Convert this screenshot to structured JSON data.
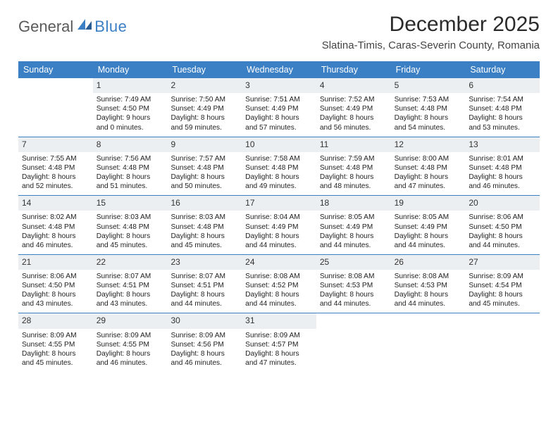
{
  "logo": {
    "text1": "General",
    "text2": "Blue"
  },
  "title": "December 2025",
  "location": "Slatina-Timis, Caras-Severin County, Romania",
  "colors": {
    "accent": "#3b7fc4",
    "header_bg": "#eceff1",
    "text": "#222222",
    "page_bg": "#ffffff"
  },
  "dow": [
    "Sunday",
    "Monday",
    "Tuesday",
    "Wednesday",
    "Thursday",
    "Friday",
    "Saturday"
  ],
  "weeks": [
    [
      {
        "n": "",
        "sr": "",
        "ss": "",
        "dl": ""
      },
      {
        "n": "1",
        "sr": "Sunrise: 7:49 AM",
        "ss": "Sunset: 4:50 PM",
        "dl": "Daylight: 9 hours and 0 minutes."
      },
      {
        "n": "2",
        "sr": "Sunrise: 7:50 AM",
        "ss": "Sunset: 4:49 PM",
        "dl": "Daylight: 8 hours and 59 minutes."
      },
      {
        "n": "3",
        "sr": "Sunrise: 7:51 AM",
        "ss": "Sunset: 4:49 PM",
        "dl": "Daylight: 8 hours and 57 minutes."
      },
      {
        "n": "4",
        "sr": "Sunrise: 7:52 AM",
        "ss": "Sunset: 4:49 PM",
        "dl": "Daylight: 8 hours and 56 minutes."
      },
      {
        "n": "5",
        "sr": "Sunrise: 7:53 AM",
        "ss": "Sunset: 4:48 PM",
        "dl": "Daylight: 8 hours and 54 minutes."
      },
      {
        "n": "6",
        "sr": "Sunrise: 7:54 AM",
        "ss": "Sunset: 4:48 PM",
        "dl": "Daylight: 8 hours and 53 minutes."
      }
    ],
    [
      {
        "n": "7",
        "sr": "Sunrise: 7:55 AM",
        "ss": "Sunset: 4:48 PM",
        "dl": "Daylight: 8 hours and 52 minutes."
      },
      {
        "n": "8",
        "sr": "Sunrise: 7:56 AM",
        "ss": "Sunset: 4:48 PM",
        "dl": "Daylight: 8 hours and 51 minutes."
      },
      {
        "n": "9",
        "sr": "Sunrise: 7:57 AM",
        "ss": "Sunset: 4:48 PM",
        "dl": "Daylight: 8 hours and 50 minutes."
      },
      {
        "n": "10",
        "sr": "Sunrise: 7:58 AM",
        "ss": "Sunset: 4:48 PM",
        "dl": "Daylight: 8 hours and 49 minutes."
      },
      {
        "n": "11",
        "sr": "Sunrise: 7:59 AM",
        "ss": "Sunset: 4:48 PM",
        "dl": "Daylight: 8 hours and 48 minutes."
      },
      {
        "n": "12",
        "sr": "Sunrise: 8:00 AM",
        "ss": "Sunset: 4:48 PM",
        "dl": "Daylight: 8 hours and 47 minutes."
      },
      {
        "n": "13",
        "sr": "Sunrise: 8:01 AM",
        "ss": "Sunset: 4:48 PM",
        "dl": "Daylight: 8 hours and 46 minutes."
      }
    ],
    [
      {
        "n": "14",
        "sr": "Sunrise: 8:02 AM",
        "ss": "Sunset: 4:48 PM",
        "dl": "Daylight: 8 hours and 46 minutes."
      },
      {
        "n": "15",
        "sr": "Sunrise: 8:03 AM",
        "ss": "Sunset: 4:48 PM",
        "dl": "Daylight: 8 hours and 45 minutes."
      },
      {
        "n": "16",
        "sr": "Sunrise: 8:03 AM",
        "ss": "Sunset: 4:48 PM",
        "dl": "Daylight: 8 hours and 45 minutes."
      },
      {
        "n": "17",
        "sr": "Sunrise: 8:04 AM",
        "ss": "Sunset: 4:49 PM",
        "dl": "Daylight: 8 hours and 44 minutes."
      },
      {
        "n": "18",
        "sr": "Sunrise: 8:05 AM",
        "ss": "Sunset: 4:49 PM",
        "dl": "Daylight: 8 hours and 44 minutes."
      },
      {
        "n": "19",
        "sr": "Sunrise: 8:05 AM",
        "ss": "Sunset: 4:49 PM",
        "dl": "Daylight: 8 hours and 44 minutes."
      },
      {
        "n": "20",
        "sr": "Sunrise: 8:06 AM",
        "ss": "Sunset: 4:50 PM",
        "dl": "Daylight: 8 hours and 44 minutes."
      }
    ],
    [
      {
        "n": "21",
        "sr": "Sunrise: 8:06 AM",
        "ss": "Sunset: 4:50 PM",
        "dl": "Daylight: 8 hours and 43 minutes."
      },
      {
        "n": "22",
        "sr": "Sunrise: 8:07 AM",
        "ss": "Sunset: 4:51 PM",
        "dl": "Daylight: 8 hours and 43 minutes."
      },
      {
        "n": "23",
        "sr": "Sunrise: 8:07 AM",
        "ss": "Sunset: 4:51 PM",
        "dl": "Daylight: 8 hours and 44 minutes."
      },
      {
        "n": "24",
        "sr": "Sunrise: 8:08 AM",
        "ss": "Sunset: 4:52 PM",
        "dl": "Daylight: 8 hours and 44 minutes."
      },
      {
        "n": "25",
        "sr": "Sunrise: 8:08 AM",
        "ss": "Sunset: 4:53 PM",
        "dl": "Daylight: 8 hours and 44 minutes."
      },
      {
        "n": "26",
        "sr": "Sunrise: 8:08 AM",
        "ss": "Sunset: 4:53 PM",
        "dl": "Daylight: 8 hours and 44 minutes."
      },
      {
        "n": "27",
        "sr": "Sunrise: 8:09 AM",
        "ss": "Sunset: 4:54 PM",
        "dl": "Daylight: 8 hours and 45 minutes."
      }
    ],
    [
      {
        "n": "28",
        "sr": "Sunrise: 8:09 AM",
        "ss": "Sunset: 4:55 PM",
        "dl": "Daylight: 8 hours and 45 minutes."
      },
      {
        "n": "29",
        "sr": "Sunrise: 8:09 AM",
        "ss": "Sunset: 4:55 PM",
        "dl": "Daylight: 8 hours and 46 minutes."
      },
      {
        "n": "30",
        "sr": "Sunrise: 8:09 AM",
        "ss": "Sunset: 4:56 PM",
        "dl": "Daylight: 8 hours and 46 minutes."
      },
      {
        "n": "31",
        "sr": "Sunrise: 8:09 AM",
        "ss": "Sunset: 4:57 PM",
        "dl": "Daylight: 8 hours and 47 minutes."
      },
      {
        "n": "",
        "sr": "",
        "ss": "",
        "dl": ""
      },
      {
        "n": "",
        "sr": "",
        "ss": "",
        "dl": ""
      },
      {
        "n": "",
        "sr": "",
        "ss": "",
        "dl": ""
      }
    ]
  ]
}
